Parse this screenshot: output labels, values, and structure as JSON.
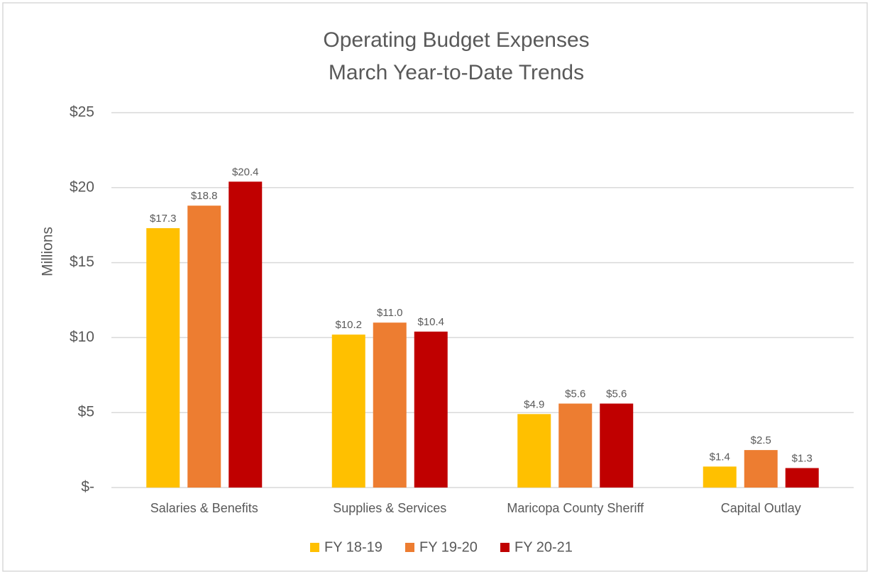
{
  "chart_data": {
    "type": "bar",
    "title": "Operating Budget Expenses",
    "subtitle": "March Year-to-Date Trends",
    "y_label": "Millions",
    "categories": [
      "Salaries & Benefits",
      "Supplies & Services",
      "Maricopa County Sheriff",
      "Capital Outlay"
    ],
    "series": [
      {
        "name": "FY 18-19",
        "color": "#ffc000",
        "values": [
          17.3,
          10.2,
          4.9,
          1.4
        ],
        "value_labels": [
          "$17.3",
          "$10.2",
          "$4.9",
          "$1.4"
        ]
      },
      {
        "name": "FY 19-20",
        "color": "#ed7d31",
        "values": [
          18.8,
          11.0,
          5.6,
          2.5
        ],
        "value_labels": [
          "$18.8",
          "$11.0",
          "$5.6",
          "$2.5"
        ]
      },
      {
        "name": "FY 20-21",
        "color": "#c00000",
        "values": [
          20.4,
          10.4,
          5.6,
          1.3
        ],
        "value_labels": [
          "$20.4",
          "$10.4",
          "$5.6",
          "$1.3"
        ]
      }
    ],
    "ylim": [
      0,
      25
    ],
    "yticks": [
      {
        "value": 0,
        "label": "$-"
      },
      {
        "value": 5,
        "label": "$5"
      },
      {
        "value": 10,
        "label": "$10"
      },
      {
        "value": 15,
        "label": "$15"
      },
      {
        "value": 20,
        "label": "$20"
      },
      {
        "value": 25,
        "label": "$25"
      }
    ],
    "grid": true,
    "legend": "bottom"
  }
}
